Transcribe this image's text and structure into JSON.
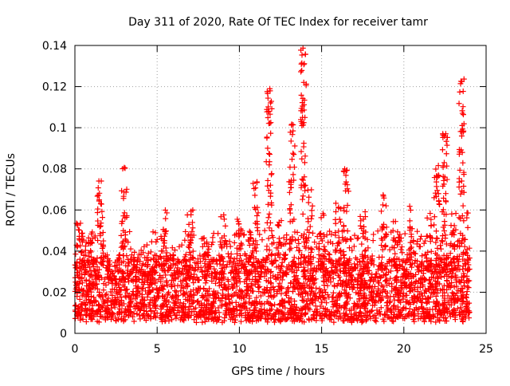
{
  "chart_data": {
    "type": "scatter",
    "title": "Day 311 of 2020, Rate Of TEC Index for receiver tamr",
    "xlabel": "GPS time / hours",
    "ylabel": "ROTI / TECUs",
    "xlim": [
      0,
      25
    ],
    "ylim": [
      0,
      0.14
    ],
    "x_ticks": [
      0,
      5,
      10,
      15,
      20,
      25
    ],
    "y_ticks": [
      0,
      0.02,
      0.04,
      0.06,
      0.08,
      0.1,
      0.12,
      0.14
    ],
    "x_tick_labels": [
      "0",
      "5",
      "10",
      "15",
      "20",
      "25"
    ],
    "y_tick_labels": [
      "0",
      "0.02",
      "0.04",
      "0.06",
      "0.08",
      "0.1",
      "0.12",
      "0.14"
    ],
    "grid": true,
    "marker": "+",
    "color": "#ff0000",
    "series": [
      {
        "name": "ROTI",
        "x_range": [
          0,
          24
        ],
        "baseline_range": [
          0.005,
          0.035
        ],
        "upper_envelope": [
          {
            "x": 0.0,
            "y": 0.04
          },
          {
            "x": 0.2,
            "y": 0.055
          },
          {
            "x": 0.5,
            "y": 0.048
          },
          {
            "x": 1.0,
            "y": 0.05
          },
          {
            "x": 1.5,
            "y": 0.075
          },
          {
            "x": 2.0,
            "y": 0.04
          },
          {
            "x": 2.5,
            "y": 0.04
          },
          {
            "x": 3.0,
            "y": 0.082
          },
          {
            "x": 3.5,
            "y": 0.04
          },
          {
            "x": 4.0,
            "y": 0.04
          },
          {
            "x": 5.5,
            "y": 0.061
          },
          {
            "x": 6.0,
            "y": 0.04
          },
          {
            "x": 7.0,
            "y": 0.06
          },
          {
            "x": 8.0,
            "y": 0.045
          },
          {
            "x": 9.0,
            "y": 0.058
          },
          {
            "x": 10.0,
            "y": 0.058
          },
          {
            "x": 11.0,
            "y": 0.075
          },
          {
            "x": 11.8,
            "y": 0.119
          },
          {
            "x": 12.5,
            "y": 0.055
          },
          {
            "x": 13.2,
            "y": 0.102
          },
          {
            "x": 13.9,
            "y": 0.139
          },
          {
            "x": 14.3,
            "y": 0.07
          },
          {
            "x": 15.0,
            "y": 0.06
          },
          {
            "x": 16.0,
            "y": 0.065
          },
          {
            "x": 16.5,
            "y": 0.08
          },
          {
            "x": 17.5,
            "y": 0.06
          },
          {
            "x": 18.8,
            "y": 0.068
          },
          {
            "x": 19.5,
            "y": 0.055
          },
          {
            "x": 20.5,
            "y": 0.062
          },
          {
            "x": 21.5,
            "y": 0.06
          },
          {
            "x": 22.0,
            "y": 0.086
          },
          {
            "x": 22.5,
            "y": 0.098
          },
          {
            "x": 23.0,
            "y": 0.06
          },
          {
            "x": 23.5,
            "y": 0.125
          },
          {
            "x": 24.0,
            "y": 0.06
          }
        ]
      }
    ]
  }
}
